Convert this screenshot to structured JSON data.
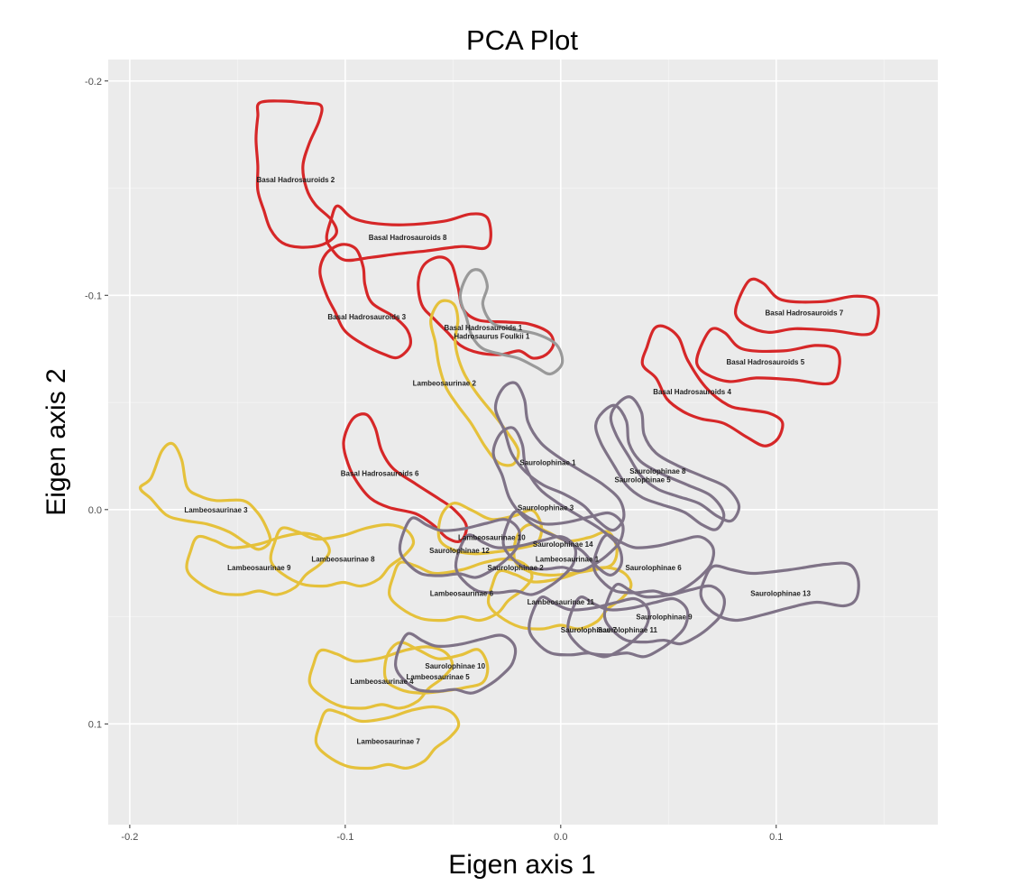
{
  "chart_data": {
    "type": "scatter",
    "title": "PCA Plot",
    "xlabel": "Eigen axis 1",
    "ylabel": "Eigen axis 2",
    "xlim": [
      -0.21,
      0.175
    ],
    "ylim": [
      -0.21,
      0.147
    ],
    "y_reversed": true,
    "x_ticks": [
      -0.2,
      -0.1,
      0.0,
      0.1
    ],
    "x_tick_labels": [
      "-0.2",
      "-0.1",
      "0.0",
      "0.1"
    ],
    "y_ticks": [
      -0.2,
      -0.1,
      0.0,
      0.1
    ],
    "y_tick_labels": [
      "-0.2",
      "-0.1",
      "0.0",
      "0.1"
    ],
    "grid": true,
    "legend": "none",
    "groups": [
      {
        "group": "Basal Hadrosauroids",
        "color": "#d62728"
      },
      {
        "group": "Hadrosaurus Foulkii",
        "color": "#999999"
      },
      {
        "group": "Lambeosaurinae",
        "color": "#e5c13b"
      },
      {
        "group": "Saurolophinae",
        "color": "#7f7387"
      }
    ],
    "outlines": [
      {
        "label": "Basal Hadrosauroids 2",
        "group": "Basal Hadrosauroids",
        "x": -0.123,
        "y": -0.154,
        "shape": "skull-a"
      },
      {
        "label": "Basal Hadrosauroids 8",
        "group": "Basal Hadrosauroids",
        "x": -0.071,
        "y": -0.127,
        "shape": "skull-b"
      },
      {
        "label": "Basal Hadrosauroids 3",
        "group": "Basal Hadrosauroids",
        "x": -0.09,
        "y": -0.09,
        "shape": "skull-c"
      },
      {
        "label": "Basal Hadrosauroids 1",
        "group": "Basal Hadrosauroids",
        "x": -0.036,
        "y": -0.085,
        "shape": "skull-d"
      },
      {
        "label": "Basal Hadrosauroids 7",
        "group": "Basal Hadrosauroids",
        "x": 0.113,
        "y": -0.092,
        "shape": "skull-e"
      },
      {
        "label": "Basal Hadrosauroids 5",
        "group": "Basal Hadrosauroids",
        "x": 0.095,
        "y": -0.069,
        "shape": "skull-e"
      },
      {
        "label": "Basal Hadrosauroids 4",
        "group": "Basal Hadrosauroids",
        "x": 0.061,
        "y": -0.055,
        "shape": "skull-f"
      },
      {
        "label": "Basal Hadrosauroids 6",
        "group": "Basal Hadrosauroids",
        "x": -0.084,
        "y": -0.017,
        "shape": "skull-g"
      },
      {
        "label": "Hadrosaurus Foulkii 1",
        "group": "Hadrosaurus Foulkii",
        "x": -0.032,
        "y": -0.081,
        "shape": "skull-h"
      },
      {
        "label": "Lambeosaurinae 2",
        "group": "Lambeosaurinae",
        "x": -0.054,
        "y": -0.059,
        "shape": "skull-i"
      },
      {
        "label": "Lambeosaurinae 3",
        "group": "Lambeosaurinae",
        "x": -0.16,
        "y": 0.0,
        "shape": "skull-j"
      },
      {
        "label": "Lambeosaurinae 9",
        "group": "Lambeosaurinae",
        "x": -0.14,
        "y": 0.027,
        "shape": "skull-k"
      },
      {
        "label": "Lambeosaurinae 8",
        "group": "Lambeosaurinae",
        "x": -0.101,
        "y": 0.023,
        "shape": "skull-k"
      },
      {
        "label": "Lambeosaurinae 6",
        "group": "Lambeosaurinae",
        "x": -0.046,
        "y": 0.039,
        "shape": "skull-k"
      },
      {
        "label": "Lambeosaurinae 10",
        "group": "Lambeosaurinae",
        "x": -0.032,
        "y": 0.013,
        "shape": "skull-l"
      },
      {
        "label": "Lambeosaurinae 11",
        "group": "Lambeosaurinae",
        "x": 0.0,
        "y": 0.043,
        "shape": "skull-k"
      },
      {
        "label": "Lambeosaurinae 1",
        "group": "Lambeosaurinae",
        "x": 0.003,
        "y": 0.023,
        "shape": "skull-l"
      },
      {
        "label": "Lambeosaurinae 4",
        "group": "Lambeosaurinae",
        "x": -0.083,
        "y": 0.08,
        "shape": "skull-k"
      },
      {
        "label": "Lambeosaurinae 5",
        "group": "Lambeosaurinae",
        "x": -0.057,
        "y": 0.078,
        "shape": "skull-l"
      },
      {
        "label": "Lambeosaurinae 7",
        "group": "Lambeosaurinae",
        "x": -0.08,
        "y": 0.108,
        "shape": "skull-k"
      },
      {
        "label": "Saurolophinae 1",
        "group": "Saurolophinae",
        "x": -0.006,
        "y": -0.022,
        "shape": "skull-m"
      },
      {
        "label": "Saurolophinae 8",
        "group": "Saurolophinae",
        "x": 0.045,
        "y": -0.018,
        "shape": "skull-n"
      },
      {
        "label": "Saurolophinae 5",
        "group": "Saurolophinae",
        "x": 0.038,
        "y": -0.014,
        "shape": "skull-n"
      },
      {
        "label": "Saurolophinae 3",
        "group": "Saurolophinae",
        "x": -0.007,
        "y": -0.001,
        "shape": "skull-m"
      },
      {
        "label": "Saurolophinae 14",
        "group": "Saurolophinae",
        "x": 0.001,
        "y": 0.016,
        "shape": "skull-o"
      },
      {
        "label": "Saurolophinae 12",
        "group": "Saurolophinae",
        "x": -0.047,
        "y": 0.019,
        "shape": "skull-o"
      },
      {
        "label": "Saurolophinae 2",
        "group": "Saurolophinae",
        "x": -0.021,
        "y": 0.027,
        "shape": "skull-o"
      },
      {
        "label": "Saurolophinae 6",
        "group": "Saurolophinae",
        "x": 0.043,
        "y": 0.027,
        "shape": "skull-o"
      },
      {
        "label": "Saurolophinae 13",
        "group": "Saurolophinae",
        "x": 0.102,
        "y": 0.039,
        "shape": "skull-p"
      },
      {
        "label": "Saurolophinae 9",
        "group": "Saurolophinae",
        "x": 0.048,
        "y": 0.05,
        "shape": "skull-o"
      },
      {
        "label": "Saurolophinae 11",
        "group": "Saurolophinae",
        "x": 0.031,
        "y": 0.056,
        "shape": "skull-o"
      },
      {
        "label": "Saurolophinae 7",
        "group": "Saurolophinae",
        "x": 0.013,
        "y": 0.056,
        "shape": "skull-o"
      },
      {
        "label": "Saurolophinae 10",
        "group": "Saurolophinae",
        "x": -0.049,
        "y": 0.073,
        "shape": "skull-o"
      }
    ]
  }
}
